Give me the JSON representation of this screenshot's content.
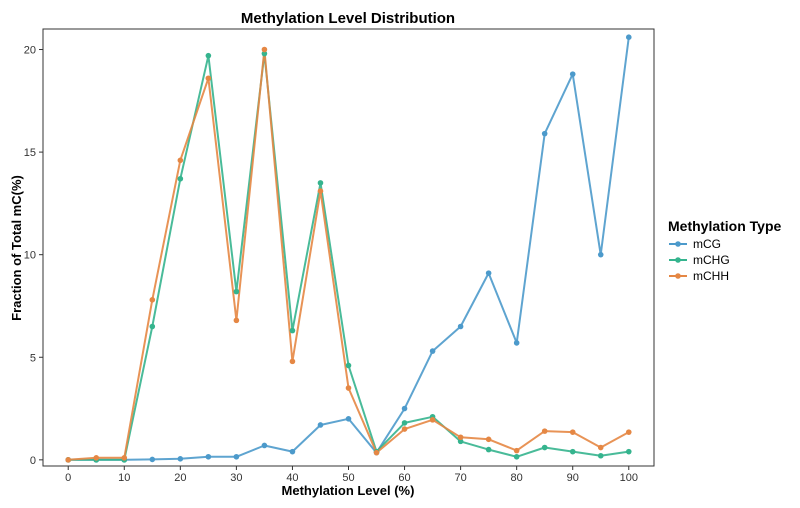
{
  "chart_data": {
    "type": "line",
    "title": "Methylation Level Distribution",
    "xlabel": "Methylation Level (%)",
    "ylabel": "Fraction of Total mC(%)",
    "xlim": [
      -4.5,
      104.5
    ],
    "ylim": [
      -0.3,
      21.0
    ],
    "xticks": [
      0,
      10,
      20,
      30,
      40,
      50,
      60,
      70,
      80,
      90,
      100
    ],
    "yticks": [
      0,
      5,
      10,
      15,
      20
    ],
    "legend_title": "Methylation Type",
    "legend_position": "right",
    "x": [
      0,
      5,
      10,
      15,
      20,
      25,
      30,
      35,
      40,
      45,
      50,
      55,
      60,
      65,
      70,
      75,
      80,
      85,
      90,
      95,
      100
    ],
    "series": [
      {
        "name": "mCG",
        "color": "#4C9ACB",
        "values": [
          0.0,
          0.0,
          0.0,
          0.02,
          0.05,
          0.15,
          0.15,
          0.7,
          0.4,
          1.7,
          2.0,
          0.35,
          2.5,
          5.3,
          6.5,
          9.1,
          5.7,
          15.9,
          18.8,
          10.0,
          20.6
        ]
      },
      {
        "name": "mCHG",
        "color": "#35B48E",
        "values": [
          0.0,
          0.0,
          0.0,
          6.5,
          13.7,
          19.7,
          8.2,
          19.8,
          6.3,
          13.5,
          4.6,
          0.4,
          1.8,
          2.1,
          0.9,
          0.5,
          0.15,
          0.6,
          0.4,
          0.2,
          0.4
        ]
      },
      {
        "name": "mCHH",
        "color": "#E58744",
        "values": [
          0.0,
          0.1,
          0.1,
          7.8,
          14.6,
          18.6,
          6.8,
          20.0,
          4.8,
          13.1,
          3.5,
          0.35,
          1.5,
          1.95,
          1.1,
          1.0,
          0.45,
          1.4,
          1.35,
          0.6,
          1.35
        ]
      }
    ]
  }
}
